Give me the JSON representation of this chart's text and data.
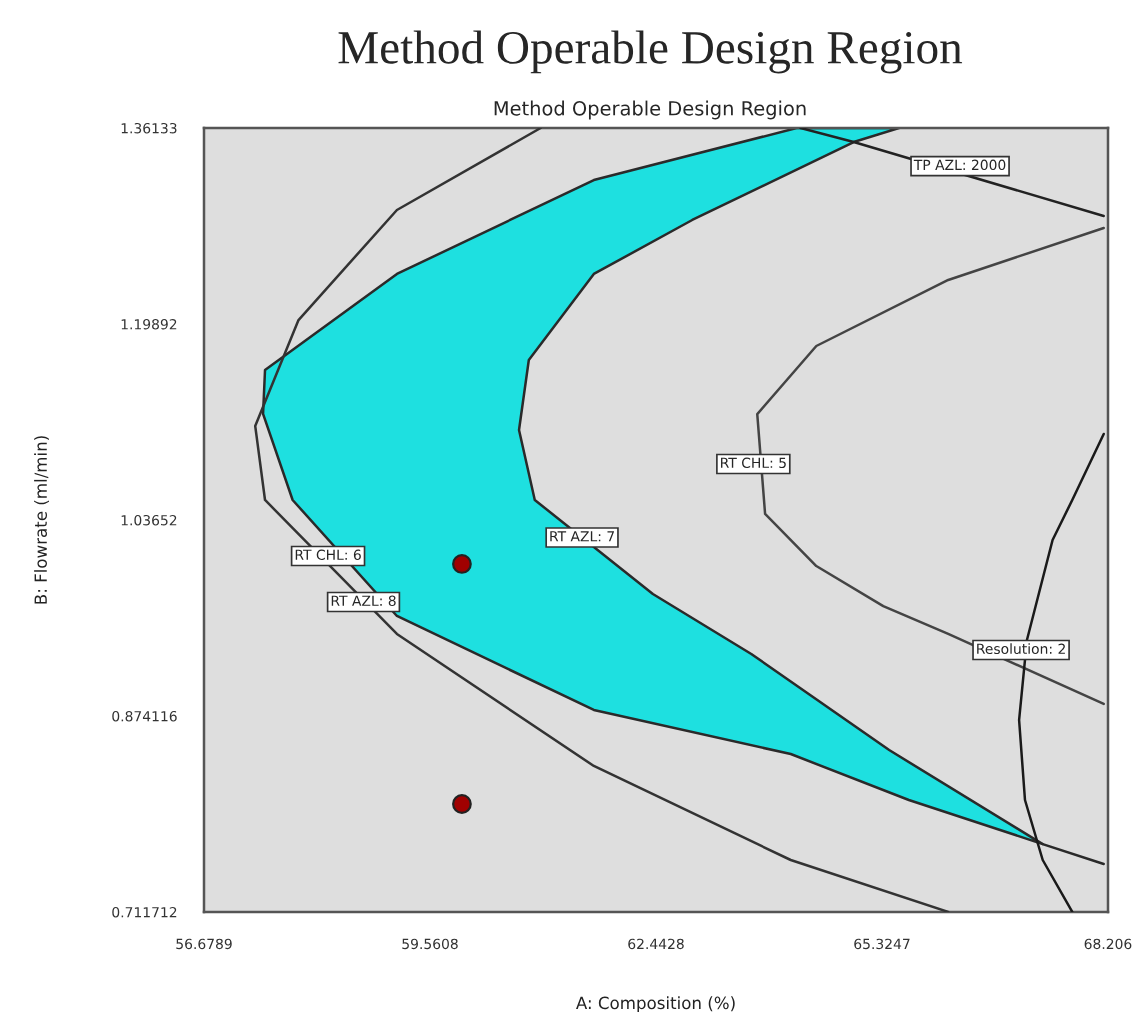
{
  "chart_data": {
    "type": "line",
    "title": "Method Operable Design Region",
    "subtitle": "Method Operable Design Region",
    "xlabel": "A: Composition (%)",
    "ylabel": "B: Flowrate (ml/min)",
    "xlim": [
      56.6789,
      68.2066
    ],
    "xticks": [
      56.6789,
      59.5608,
      62.4428,
      65.3247,
      68.206
    ],
    "ylim": [
      0.711712,
      1.36133
    ],
    "yticks": [
      0.711712,
      0.874116,
      1.03652,
      1.19892,
      1.36133
    ],
    "grid": false,
    "series": [
      {
        "type": "area",
        "color": "#1ee0e0",
        "x": [
          64.236,
          61.65,
          59.139,
          57.457,
          57.432,
          57.809,
          59.139,
          61.65,
          64.161,
          65.667,
          67.374,
          65.416,
          63.658,
          62.403,
          60.897,
          60.696,
          60.821,
          61.65,
          62.905,
          64.964,
          65.541
        ],
        "values": [
          1.3613,
          1.3182,
          1.2404,
          1.1608,
          1.1244,
          1.0531,
          0.957,
          0.8791,
          0.8426,
          0.8045,
          0.768,
          0.8459,
          0.9255,
          0.9752,
          1.0531,
          1.1111,
          1.1691,
          1.2404,
          1.2851,
          1.3497,
          1.3613
        ]
      },
      {
        "color": "#2a2a2a",
        "x": [
          67.374,
          68.152
        ],
        "values": [
          0.768,
          0.7515
        ]
      },
      {
        "color": "#333333",
        "x": [
          60.972,
          59.139,
          57.884,
          57.332,
          57.457,
          59.139,
          61.65,
          64.161,
          66.169
        ],
        "values": [
          1.3613,
          1.2934,
          1.2022,
          1.1144,
          1.0531,
          0.9421,
          0.8327,
          0.7548,
          0.7118
        ]
      },
      {
        "color": "#222222",
        "x": [
          64.287,
          64.964,
          68.152
        ],
        "values": [
          1.3613,
          1.3497,
          1.2884
        ]
      },
      {
        "color": "#444444",
        "x": [
          68.152,
          66.169,
          64.487,
          63.734,
          63.834,
          64.487,
          65.341,
          66.169,
          68.152
        ],
        "values": [
          1.2785,
          1.2354,
          1.1807,
          1.1243,
          1.0415,
          0.9984,
          0.9652,
          0.9421,
          0.8841
        ]
      },
      {
        "color": "#1a1a1a",
        "x": [
          68.152,
          67.751,
          67.5,
          67.173,
          67.073,
          67.148,
          67.374,
          67.751
        ],
        "values": [
          1.1078,
          1.0531,
          1.0199,
          0.9371,
          0.8708,
          0.8045,
          0.7548,
          0.7118
        ]
      },
      {
        "type": "scatter",
        "color": "#a00000",
        "x": [
          59.968,
          59.968
        ],
        "values": [
          1.0001,
          0.8012
        ]
      }
    ],
    "annotations": [
      {
        "text": "RT CHL: 6",
        "x": 58.261,
        "y": 1.0067
      },
      {
        "text": "RT AZL: 8",
        "x": 58.713,
        "y": 0.9686
      },
      {
        "text": "RT AZL: 7",
        "x": 61.5,
        "y": 1.022
      },
      {
        "text": "RT CHL: 5",
        "x": 63.684,
        "y": 1.0829
      },
      {
        "text": "TP AZL: 2000",
        "x": 66.32,
        "y": 1.3298
      },
      {
        "text": "Resolution: 2",
        "x": 67.098,
        "y": 0.9288
      }
    ]
  }
}
